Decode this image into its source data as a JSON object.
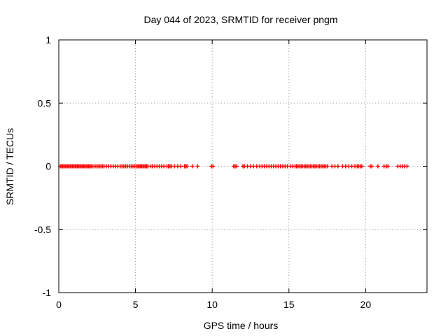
{
  "chart_data": {
    "type": "scatter",
    "title": "Day 044 of 2023, SRMTID for receiver pngm",
    "xlabel": "GPS time / hours",
    "ylabel": "SRMTID / TECUs",
    "xlim": [
      0,
      24
    ],
    "ylim": [
      -1,
      1
    ],
    "xticks": [
      0,
      5,
      10,
      15,
      20
    ],
    "xtick_labels": [
      "0",
      "5",
      "10",
      "15",
      "20"
    ],
    "yticks": [
      -1,
      -0.5,
      0,
      0.5,
      1
    ],
    "ytick_labels": [
      "-1",
      "-0.5",
      "0",
      "0.5",
      "1"
    ],
    "grid": true,
    "marker": "plus",
    "series": [
      {
        "color": "#ff0000",
        "x": [
          0.1,
          0.18,
          0.26,
          0.34,
          0.42,
          0.5,
          0.58,
          0.66,
          0.74,
          0.82,
          0.9,
          0.98,
          1.06,
          1.14,
          1.22,
          1.3,
          1.38,
          1.46,
          1.54,
          1.62,
          1.7,
          1.78,
          1.86,
          1.94,
          2.02,
          2.1,
          2.18,
          2.3,
          2.42,
          2.55,
          2.65,
          2.75,
          2.85,
          2.95,
          3.1,
          3.25,
          3.4,
          3.55,
          3.7,
          3.85,
          4.0,
          4.12,
          4.24,
          4.36,
          4.48,
          4.6,
          4.72,
          4.84,
          4.96,
          5.08,
          5.16,
          5.24,
          5.32,
          5.4,
          5.48,
          5.56,
          5.64,
          5.72,
          5.8,
          6.0,
          6.1,
          6.25,
          6.4,
          6.55,
          6.7,
          6.85,
          7.05,
          7.15,
          7.25,
          7.35,
          7.55,
          7.75,
          7.95,
          8.2,
          8.28,
          8.36,
          8.7,
          9.05,
          9.95,
          10.05,
          11.4,
          11.5,
          11.6,
          12.0,
          12.1,
          12.3,
          12.5,
          12.7,
          12.9,
          13.1,
          13.25,
          13.4,
          13.55,
          13.7,
          13.85,
          14.0,
          14.15,
          14.3,
          14.45,
          14.6,
          14.75,
          14.9,
          15.1,
          15.25,
          15.4,
          15.5,
          15.6,
          15.7,
          15.8,
          15.9,
          16.0,
          16.1,
          16.2,
          16.3,
          16.4,
          16.5,
          16.6,
          16.7,
          16.8,
          16.9,
          17.0,
          17.1,
          17.2,
          17.3,
          17.4,
          17.5,
          17.8,
          18.0,
          18.2,
          18.5,
          18.7,
          18.9,
          19.1,
          19.3,
          19.45,
          19.55,
          19.65,
          19.75,
          20.3,
          20.4,
          20.8,
          21.2,
          21.35,
          21.45,
          22.1,
          22.25,
          22.4,
          22.55,
          22.7
        ],
        "y": [
          0,
          0,
          0,
          0,
          0,
          0,
          0,
          0,
          0,
          0,
          0,
          0,
          0,
          0,
          0,
          0,
          0,
          0,
          0,
          0,
          0,
          0,
          0,
          0,
          0,
          0,
          0,
          0,
          0,
          0,
          0,
          0,
          0,
          0,
          0,
          0,
          0,
          0,
          0,
          0,
          0,
          0,
          0,
          0,
          0,
          0,
          0,
          0,
          0,
          0,
          0,
          0,
          0,
          0,
          0,
          0,
          0,
          0,
          0,
          0,
          0,
          0,
          0,
          0,
          0,
          0,
          0,
          0,
          0,
          0,
          0,
          0,
          0,
          0,
          0,
          0,
          0,
          0,
          0,
          0,
          0,
          0,
          0,
          0,
          0,
          0,
          0,
          0,
          0,
          0,
          0,
          0,
          0,
          0,
          0,
          0,
          0,
          0,
          0,
          0,
          0,
          0,
          0,
          0,
          0,
          0,
          0,
          0,
          0,
          0,
          0,
          0,
          0,
          0,
          0,
          0,
          0,
          0,
          0,
          0,
          0,
          0,
          0,
          0,
          0,
          0,
          0,
          0,
          0,
          0,
          0,
          0,
          0,
          0,
          0,
          0,
          0,
          0,
          0,
          0,
          0,
          0,
          0,
          0,
          0,
          0,
          0,
          0,
          0
        ]
      }
    ]
  }
}
